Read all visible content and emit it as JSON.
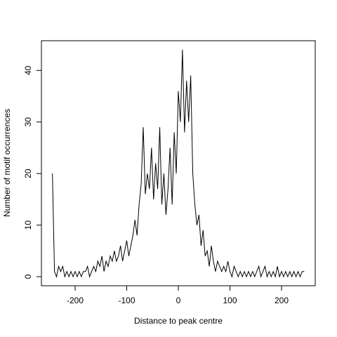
{
  "chart_data": {
    "type": "line",
    "x_label": "Distance to peak centre",
    "y_label": "Number of motif occurrences",
    "x": [
      -244,
      -240,
      -236,
      -232,
      -228,
      -224,
      -220,
      -216,
      -212,
      -208,
      -204,
      -200,
      -196,
      -192,
      -188,
      -184,
      -180,
      -176,
      -172,
      -168,
      -164,
      -160,
      -156,
      -152,
      -148,
      -144,
      -140,
      -136,
      -132,
      -128,
      -124,
      -120,
      -116,
      -112,
      -108,
      -104,
      -100,
      -96,
      -92,
      -88,
      -84,
      -80,
      -76,
      -72,
      -68,
      -64,
      -60,
      -56,
      -52,
      -48,
      -44,
      -40,
      -36,
      -32,
      -28,
      -24,
      -20,
      -16,
      -12,
      -8,
      -4,
      0,
      4,
      8,
      12,
      16,
      20,
      24,
      28,
      32,
      36,
      40,
      44,
      48,
      52,
      56,
      60,
      64,
      68,
      72,
      76,
      80,
      84,
      88,
      92,
      96,
      100,
      104,
      108,
      112,
      116,
      120,
      124,
      128,
      132,
      136,
      140,
      144,
      148,
      152,
      156,
      160,
      164,
      168,
      172,
      176,
      180,
      184,
      188,
      192,
      196,
      200,
      204,
      208,
      212,
      216,
      220,
      224,
      228,
      232,
      236,
      240,
      244
    ],
    "values": [
      20,
      1,
      0,
      2,
      1,
      2,
      0,
      1,
      0,
      1,
      0,
      1,
      0,
      1,
      0,
      1,
      1,
      2,
      0,
      1,
      2,
      1,
      3,
      2,
      4,
      1,
      3,
      2,
      4,
      3,
      5,
      3,
      4,
      6,
      3,
      5,
      7,
      4,
      6,
      8,
      11,
      8,
      14,
      18,
      29,
      16,
      20,
      17,
      25,
      15,
      22,
      17,
      29,
      14,
      20,
      12,
      17,
      25,
      14,
      28,
      20,
      36,
      30,
      44,
      28,
      38,
      30,
      39,
      20,
      14,
      10,
      12,
      6,
      9,
      4,
      5,
      2,
      6,
      3,
      1,
      3,
      2,
      1,
      2,
      1,
      3,
      1,
      0,
      2,
      1,
      0,
      1,
      0,
      1,
      0,
      1,
      0,
      1,
      0,
      1,
      2,
      0,
      1,
      2,
      0,
      1,
      0,
      1,
      0,
      2,
      0,
      1,
      0,
      1,
      0,
      1,
      0,
      1,
      0,
      1,
      0,
      1,
      1
    ],
    "color": "#000000",
    "xlim": [
      -265.3,
      265.3
    ],
    "ylim": [
      -1.76,
      45.76
    ],
    "xticks": [
      -200,
      -100,
      0,
      100,
      200
    ],
    "yticks": [
      0,
      10,
      20,
      30,
      40
    ]
  }
}
